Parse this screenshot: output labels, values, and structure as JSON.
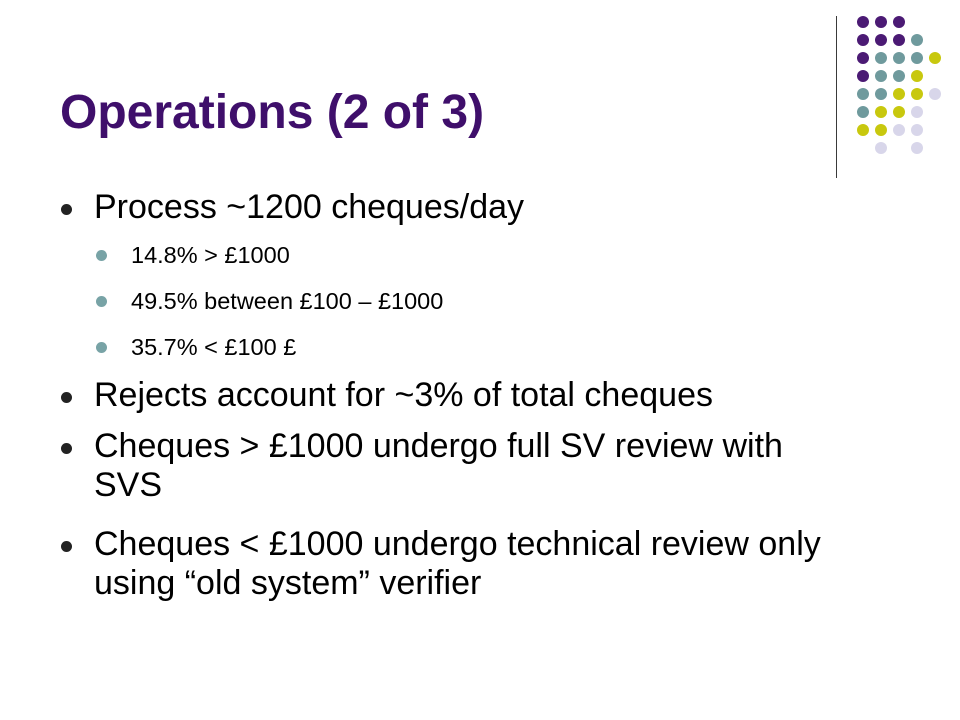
{
  "slide": {
    "title": "Operations (2 of 3)",
    "bullets": [
      {
        "text": "Process ~1200 cheques/day"
      },
      {
        "text": "14.8% > £1000"
      },
      {
        "text": "49.5% between £100 – £1000"
      },
      {
        "text": "35.7% < £100 £"
      },
      {
        "text": "Rejects account for ~3% of total cheques"
      },
      {
        "text": "Cheques > £1000 undergo full SV review with SVS"
      },
      {
        "text": "Cheques < £1000 undergo technical review only using “old system” verifier"
      }
    ]
  },
  "colors": {
    "title": "#3f0f6b",
    "deco_purple": "#4b1a74",
    "deco_teal": "#6f9a9d",
    "deco_olive": "#c8c80e",
    "deco_lavender": "#d8d6ea",
    "bullet_primary": "#222222",
    "bullet_secondary": "#78a3a6"
  },
  "decor": {
    "icon": "dot-grid-logo"
  }
}
